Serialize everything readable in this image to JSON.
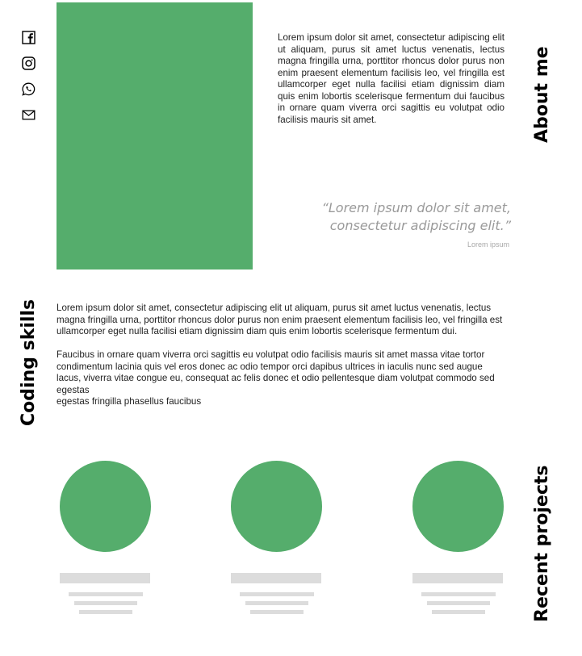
{
  "social": {
    "icons": [
      "facebook-icon",
      "instagram-icon",
      "whatsapp-icon",
      "mail-icon"
    ]
  },
  "about": {
    "heading": "About me",
    "body": "Lorem ipsum dolor sit amet, consectetur adipiscing elit ut aliquam, purus sit amet luctus venenatis, lectus magna fringilla urna, porttitor rhoncus dolor purus non enim praesent elementum facilisis leo, vel fringilla est ullamcorper eget nulla facilisi etiam dignissim diam quis enim lobortis scelerisque fermentum dui faucibus in ornare quam viverra orci sagittis eu volutpat odio facilisis mauris sit amet.",
    "quote_line1": "“Lorem ipsum dolor sit amet,",
    "quote_line2": "consectetur adipiscing elit.”",
    "quote_author": "Lorem ipsum"
  },
  "coding": {
    "heading": "Coding skills",
    "paragraph1": "Lorem ipsum dolor sit amet, consectetur adipiscing elit ut aliquam, purus sit amet luctus venenatis, lectus magna fringilla urna, porttitor rhoncus dolor purus non enim praesent elementum facilisis leo, vel fringilla est ullamcorper eget nulla facilisi etiam dignissim diam quis enim lobortis scelerisque fermentum dui.",
    "paragraph2": "Faucibus in ornare quam viverra orci sagittis eu volutpat odio facilisis mauris sit amet massa vitae tortor condimentum lacinia quis vel eros donec ac odio tempor orci dapibus ultrices in iaculis nunc sed augue lacus, viverra vitae congue eu, consequat ac felis donec et odio pellentesque diam volutpat commodo sed egestas",
    "paragraph3": "egestas fringilla phasellus faucibus"
  },
  "projects": {
    "heading": "Recent projects",
    "count": 3
  },
  "colors": {
    "accent": "#55ad6c",
    "placeholder": "#dcdcdc",
    "quote": "#9a9a9a"
  }
}
